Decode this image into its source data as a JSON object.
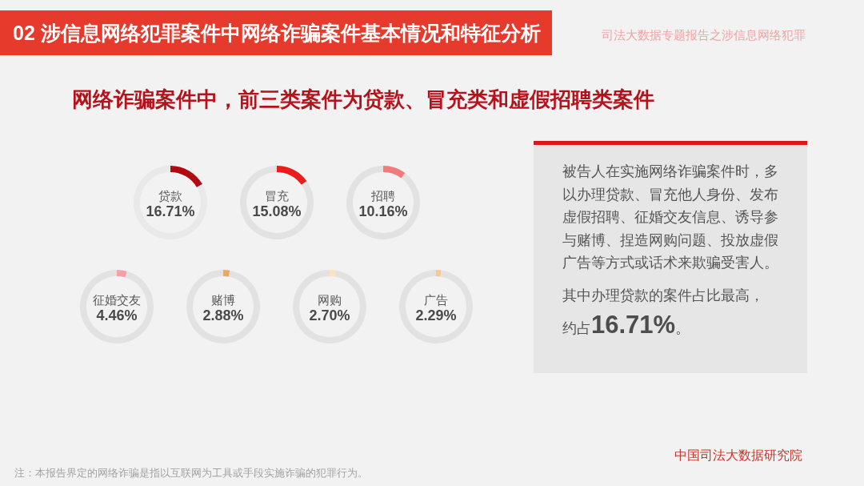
{
  "chart_data": [
    {
      "type": "other",
      "title": "02 涉信息网络犯罪案件中网络诈骗案件基本情况和特征分析",
      "subtitle": "网络诈骗案件中，前三类案件为贷款、冒充类和虚假招聘类案件",
      "annotations": [
        "司法大数据专题报告之涉信息网络犯罪",
        "注：本报告界定的网络诈骗是指以互联网为工具或手段实施诈骗的犯罪行为。",
        "中国司法大数据研究院"
      ]
    },
    {
      "type": "donut",
      "categories": [
        "贷款",
        null
      ],
      "values": [
        16.71,
        83.29
      ],
      "colors": [
        "#b20a12",
        "#e9e9e9"
      ],
      "value_labels": [
        "16.71%",
        null
      ]
    },
    {
      "type": "donut",
      "categories": [
        "冒充",
        null
      ],
      "values": [
        15.08,
        84.92
      ],
      "colors": [
        "#ee1b1b",
        "#e2e2e2"
      ],
      "value_labels": [
        "15.08%",
        null
      ]
    },
    {
      "type": "donut",
      "categories": [
        "招聘",
        null
      ],
      "values": [
        10.16,
        89.84
      ],
      "colors": [
        "#f27a7a",
        "#e2e2e2"
      ],
      "value_labels": [
        "10.16%",
        null
      ]
    },
    {
      "type": "donut",
      "categories": [
        "征婚交友",
        null
      ],
      "values": [
        4.46,
        95.54
      ],
      "colors": [
        "#f4a2a8",
        "#e2e2e2"
      ],
      "value_labels": [
        "4.46%",
        null
      ]
    },
    {
      "type": "donut",
      "categories": [
        "赌博",
        null
      ],
      "values": [
        2.88,
        97.12
      ],
      "colors": [
        "#f2a65c",
        "#e2e2e2"
      ],
      "value_labels": [
        "2.88%",
        null
      ]
    },
    {
      "type": "donut",
      "categories": [
        "网购",
        null
      ],
      "values": [
        2.7,
        97.3
      ],
      "colors": [
        "#fde2bc",
        "#e2e2e2"
      ],
      "value_labels": [
        "2.70%",
        null
      ]
    },
    {
      "type": "donut",
      "categories": [
        "广告",
        null
      ],
      "values": [
        2.29,
        97.71
      ],
      "colors": [
        "#f8c98e",
        "#e2e2e2"
      ],
      "value_labels": [
        "2.29%",
        null
      ]
    },
    {
      "type": "other",
      "annotations": [
        "被告人在实施网络诈骗案件时，多以办理贷款、冒充他人身份、发布虚假招聘、征婚交友信息、诱导参与赌博、捏造网购问题、投放虚假广告等方式或话术来欺骗受害人。",
        "其中办理贷款的案件占比最高，",
        "约占16.71%。"
      ]
    }
  ]
}
